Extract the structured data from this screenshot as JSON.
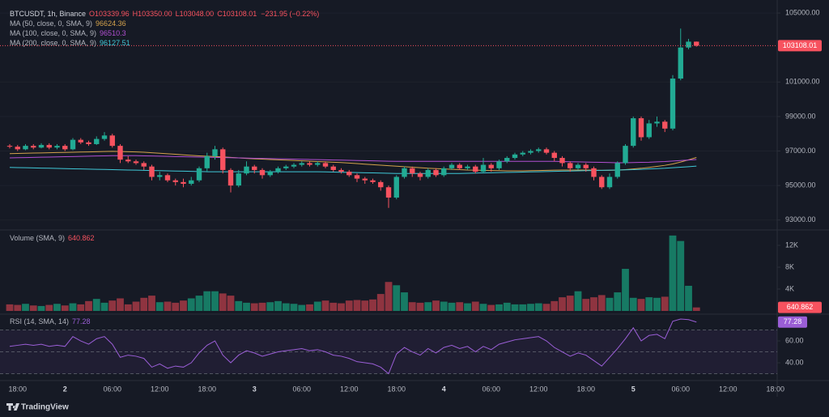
{
  "header": {
    "symbol": "BTCUSDT, 1h, Binance",
    "ohlc": [
      "O103339.96",
      "H103350.00",
      "L103048.00",
      "C103108.01"
    ],
    "change": "−231.95 (−0.22%)"
  },
  "branding": "TradingView",
  "chart_data": [
    {
      "type": "candlestick",
      "categories": [
        null,
        "18:00",
        null,
        null,
        null,
        null,
        null,
        "2",
        null,
        null,
        null,
        null,
        null,
        "06:00",
        null,
        null,
        null,
        null,
        null,
        "12:00",
        null,
        null,
        null,
        null,
        null,
        "18:00",
        null,
        null,
        null,
        null,
        null,
        "3",
        null,
        null,
        null,
        null,
        null,
        "06:00",
        null,
        null,
        null,
        null,
        null,
        "12:00",
        null,
        null,
        null,
        null,
        null,
        "18:00",
        null,
        null,
        null,
        null,
        null,
        "4",
        null,
        null,
        null,
        null,
        null,
        "06:00",
        null,
        null,
        null,
        null,
        null,
        "12:00",
        null,
        null,
        null,
        null,
        null,
        "18:00",
        null,
        null,
        null,
        null,
        null,
        "5",
        null,
        null,
        null,
        null,
        null,
        "06:00",
        null,
        null,
        null,
        null,
        null,
        "12:00",
        null,
        null,
        null,
        null,
        null,
        "18:00"
      ],
      "open": [
        97300,
        97250,
        97100,
        97300,
        97200,
        97350,
        97200,
        97300,
        97100,
        97650,
        97500,
        97400,
        97700,
        97900,
        97300,
        96500,
        96400,
        96300,
        96100,
        95500,
        95600,
        95300,
        95200,
        95100,
        95300,
        96000,
        96700,
        97100,
        95900,
        95000,
        95700,
        96100,
        95900,
        95600,
        95800,
        96000,
        96100,
        96200,
        96300,
        96200,
        96300,
        96100,
        95900,
        95800,
        95600,
        95400,
        95300,
        95200,
        94900,
        94300,
        95500,
        96000,
        95700,
        95500,
        95900,
        95600,
        96000,
        96200,
        96000,
        96100,
        95800,
        96200,
        96000,
        96400,
        96600,
        96800,
        96900,
        97000,
        97100,
        96900,
        96600,
        96300,
        96000,
        96200,
        96000,
        95500,
        94900,
        95500,
        96300,
        97300,
        98900,
        97800,
        98600,
        98700,
        98300,
        101200,
        103000,
        103339.96,
        null,
        null,
        null,
        null,
        null,
        null,
        null,
        null,
        null,
        null
      ],
      "high": [
        97400,
        97350,
        97400,
        97400,
        97450,
        97450,
        97400,
        97400,
        97750,
        97750,
        97600,
        97850,
        98100,
        98000,
        97400,
        96700,
        96500,
        96400,
        96200,
        95800,
        95700,
        95400,
        95400,
        95500,
        96100,
        96900,
        97300,
        97200,
        96000,
        95900,
        96400,
        96200,
        96000,
        95900,
        96100,
        96200,
        96300,
        96400,
        96400,
        96400,
        96400,
        96200,
        96000,
        95900,
        95700,
        95500,
        95400,
        95300,
        95000,
        95600,
        96100,
        96100,
        95800,
        96000,
        96000,
        96100,
        96300,
        96300,
        96200,
        96200,
        96600,
        96300,
        96500,
        96700,
        96900,
        97000,
        97100,
        97200,
        97200,
        97000,
        96700,
        96400,
        96300,
        96300,
        96100,
        95600,
        95700,
        96400,
        97400,
        99000,
        99000,
        98800,
        99000,
        98800,
        101400,
        104100,
        103500,
        103350,
        null,
        null,
        null,
        null,
        null,
        null,
        null,
        null,
        null,
        null
      ],
      "low": [
        97150,
        97000,
        97050,
        97100,
        97150,
        97100,
        97100,
        97000,
        97050,
        97400,
        97300,
        97350,
        97600,
        97200,
        96300,
        96300,
        96200,
        95900,
        95300,
        95300,
        95200,
        95000,
        94900,
        95000,
        95200,
        95800,
        96500,
        95700,
        94600,
        94900,
        95600,
        95700,
        95400,
        95500,
        95700,
        95900,
        96000,
        96100,
        96100,
        96100,
        96000,
        95800,
        95700,
        95500,
        95200,
        95100,
        95100,
        94700,
        93700,
        94200,
        95400,
        95500,
        95300,
        95400,
        95500,
        95500,
        95900,
        95900,
        95900,
        95700,
        95700,
        95800,
        95900,
        96300,
        96500,
        96700,
        96800,
        96900,
        96800,
        96400,
        96100,
        95800,
        95900,
        95800,
        95300,
        94800,
        94800,
        95400,
        96200,
        97200,
        97600,
        97700,
        98400,
        98100,
        98200,
        101100,
        102900,
        103048,
        null,
        null,
        null,
        null,
        null,
        null,
        null,
        null,
        null,
        null
      ],
      "close": [
        97250,
        97100,
        97300,
        97200,
        97350,
        97200,
        97300,
        97100,
        97650,
        97500,
        97400,
        97700,
        97900,
        97300,
        96500,
        96400,
        96300,
        96100,
        95500,
        95600,
        95300,
        95200,
        95100,
        95300,
        96000,
        96700,
        97100,
        95900,
        95000,
        95700,
        96100,
        95900,
        95600,
        95800,
        96000,
        96100,
        96200,
        96300,
        96200,
        96300,
        96100,
        95900,
        95800,
        95600,
        95400,
        95300,
        95200,
        94900,
        94300,
        95500,
        96000,
        95700,
        95500,
        95900,
        95600,
        96000,
        96200,
        96000,
        96100,
        95800,
        96200,
        96000,
        96400,
        96600,
        96800,
        96900,
        97000,
        97100,
        96900,
        96600,
        96300,
        96000,
        96200,
        96000,
        95500,
        94900,
        95500,
        96300,
        97300,
        98900,
        97800,
        98600,
        98700,
        98300,
        101200,
        103000,
        103339.96,
        103108.01,
        null,
        null,
        null,
        null,
        null,
        null,
        null,
        null,
        null,
        null
      ],
      "up_color": "#22ab94",
      "down_color": "#f7525f",
      "ylim": [
        92470,
        105380
      ],
      "yticks": [
        {
          "value": 93000,
          "label": "93000.00"
        },
        {
          "value": 95000,
          "label": "95000.00"
        },
        {
          "value": 97000,
          "label": "97000.00"
        },
        {
          "value": 99000,
          "label": "99000.00"
        },
        {
          "value": 101000,
          "label": "101000.00"
        },
        {
          "value": 105000,
          "label": "105000.00"
        }
      ],
      "grid": true,
      "series": [
        {
          "name": "MA (50, close, 0, SMA, 9)",
          "color": "#d4a24c",
          "values": [
            96850,
            96860,
            96870,
            96880,
            96890,
            96900,
            96910,
            96920,
            96930,
            96940,
            96950,
            96960,
            96970,
            96980,
            96970,
            96960,
            96950,
            96930,
            96900,
            96870,
            96840,
            96810,
            96780,
            96750,
            96720,
            96700,
            96680,
            96660,
            96630,
            96600,
            96570,
            96550,
            96530,
            96510,
            96490,
            96470,
            96450,
            96430,
            96410,
            96390,
            96370,
            96350,
            96330,
            96300,
            96270,
            96240,
            96210,
            96180,
            96150,
            96120,
            96090,
            96060,
            96030,
            96000,
            95980,
            95960,
            95940,
            95920,
            95900,
            95890,
            95880,
            95870,
            95860,
            95850,
            95850,
            95850,
            95860,
            95870,
            95880,
            95890,
            95900,
            95900,
            95900,
            95900,
            95890,
            95880,
            95880,
            95890,
            95920,
            95960,
            96000,
            96050,
            96110,
            96170,
            96250,
            96360,
            96490,
            96624.36,
            null,
            null,
            null,
            null,
            null,
            null,
            null,
            null,
            null,
            null
          ]
        },
        {
          "name": "MA (100, close, 0, SMA, 9)",
          "color": "#b14fd1",
          "values": [
            96600,
            96610,
            96620,
            96630,
            96640,
            96650,
            96660,
            96670,
            96680,
            96690,
            96700,
            96710,
            96720,
            96730,
            96730,
            96730,
            96730,
            96720,
            96710,
            96700,
            96690,
            96680,
            96670,
            96660,
            96650,
            96640,
            96630,
            96620,
            96610,
            96600,
            96590,
            96580,
            96570,
            96560,
            96550,
            96540,
            96530,
            96520,
            96510,
            96500,
            96490,
            96480,
            96470,
            96460,
            96450,
            96440,
            96430,
            96420,
            96410,
            96400,
            96400,
            96400,
            96400,
            96400,
            96400,
            96400,
            96400,
            96400,
            96400,
            96400,
            96400,
            96400,
            96400,
            96400,
            96400,
            96400,
            96400,
            96400,
            96400,
            96400,
            96390,
            96380,
            96370,
            96360,
            96350,
            96340,
            96330,
            96320,
            96320,
            96330,
            96340,
            96350,
            96370,
            96390,
            96420,
            96450,
            96480,
            96510.3,
            null,
            null,
            null,
            null,
            null,
            null,
            null,
            null,
            null,
            null
          ]
        },
        {
          "name": "MA (200, close, 0, SMA, 9)",
          "color": "#3fc7d6",
          "values": [
            96050,
            96040,
            96030,
            96020,
            96010,
            96000,
            95990,
            95980,
            95970,
            95960,
            95950,
            95940,
            95930,
            95920,
            95910,
            95900,
            95890,
            95880,
            95870,
            95860,
            95850,
            95840,
            95830,
            95820,
            95810,
            95800,
            95800,
            95800,
            95800,
            95800,
            95800,
            95800,
            95800,
            95800,
            95800,
            95800,
            95800,
            95800,
            95800,
            95800,
            95790,
            95780,
            95770,
            95760,
            95750,
            95740,
            95730,
            95720,
            95710,
            95700,
            95700,
            95700,
            95700,
            95700,
            95700,
            95700,
            95700,
            95700,
            95710,
            95720,
            95730,
            95740,
            95750,
            95760,
            95770,
            95780,
            95790,
            95800,
            95810,
            95820,
            95830,
            95840,
            95850,
            95860,
            95870,
            95880,
            95890,
            95900,
            95910,
            95920,
            95940,
            95960,
            95980,
            96000,
            96030,
            96060,
            96090,
            96127.51,
            null,
            null,
            null,
            null,
            null,
            null,
            null,
            null,
            null,
            null
          ]
        }
      ]
    },
    {
      "type": "bar",
      "title": "Volume (SMA, 9)",
      "values": [
        1200,
        1100,
        1300,
        1000,
        900,
        1100,
        1300,
        1000,
        1400,
        1200,
        1800,
        2200,
        1500,
        1900,
        2300,
        1200,
        1700,
        2400,
        2800,
        1600,
        1700,
        1500,
        1900,
        2300,
        2800,
        3600,
        3600,
        3200,
        2800,
        1800,
        1500,
        1400,
        1500,
        1600,
        1800,
        1400,
        1300,
        1100,
        1200,
        1700,
        1900,
        1500,
        1400,
        1900,
        2000,
        1900,
        2100,
        3100,
        5300,
        4700,
        3400,
        1600,
        1500,
        1600,
        1900,
        1700,
        1500,
        1600,
        1400,
        1700,
        1300,
        1100,
        1200,
        1500,
        1200,
        1200,
        1300,
        1400,
        1300,
        1800,
        2500,
        2800,
        3600,
        2200,
        2500,
        2900,
        2400,
        3400,
        7700,
        2400,
        2200,
        2500,
        2400,
        2600,
        13800,
        12800,
        4600,
        640.862,
        null,
        null,
        null,
        null,
        null,
        null,
        null,
        null,
        null,
        null
      ],
      "up_color": "#177a64",
      "down_color": "#8f3440",
      "ylim": [
        0,
        14670
      ],
      "yticks": [
        {
          "value": 4000,
          "label": "4K"
        },
        {
          "value": 8000,
          "label": "8K"
        },
        {
          "value": 12000,
          "label": "12K"
        }
      ]
    },
    {
      "type": "line",
      "title": "RSI (14, SMA, 14)",
      "color": "#9a5ed6",
      "values": [
        55,
        56,
        57,
        56,
        57,
        55,
        56,
        55,
        64,
        60,
        57,
        62,
        64,
        57,
        45,
        47,
        46,
        44,
        36,
        39,
        35,
        37,
        36,
        40,
        49,
        56,
        60,
        47,
        40,
        47,
        51,
        49,
        46,
        48,
        50,
        51,
        52,
        53,
        51,
        52,
        50,
        47,
        46,
        44,
        41,
        40,
        39,
        36,
        30,
        48,
        54,
        50,
        47,
        53,
        49,
        54,
        56,
        53,
        55,
        50,
        55,
        52,
        57,
        59,
        61,
        62,
        63,
        64,
        60,
        54,
        50,
        46,
        49,
        47,
        42,
        37,
        45,
        53,
        62,
        72,
        60,
        65,
        66,
        62,
        78,
        80,
        79.5,
        77.28,
        null,
        null,
        null,
        null,
        null,
        null,
        null,
        null,
        null,
        null
      ],
      "bands": [
        70,
        50,
        30
      ],
      "ylim": [
        25.2,
        83
      ],
      "yticks": [
        {
          "value": 40,
          "label": "40.00"
        },
        {
          "value": 60,
          "label": "60.00"
        }
      ]
    }
  ]
}
